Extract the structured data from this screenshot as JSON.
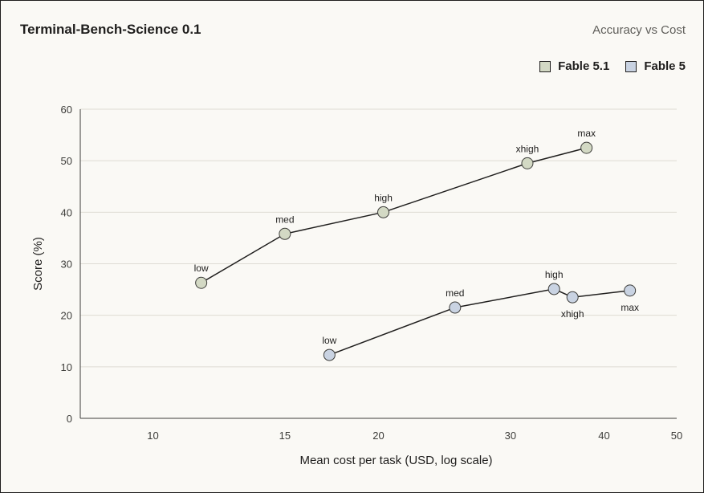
{
  "header": {
    "title": "Terminal-Bench-Science 0.1",
    "subtitle": "Accuracy vs Cost"
  },
  "chart_data": {
    "type": "line",
    "title": "Terminal-Bench-Science 0.1",
    "subtitle": "Accuracy vs Cost",
    "xlabel": "Mean cost per task (USD, log scale)",
    "ylabel": "Score (%)",
    "xscale": "log",
    "xlim": [
      8,
      50
    ],
    "ylim": [
      0,
      60
    ],
    "xticks": [
      10,
      15,
      20,
      30,
      40,
      50
    ],
    "yticks": [
      0,
      10,
      20,
      30,
      40,
      50,
      60
    ],
    "grid": "horizontal",
    "legend_position": "top-right",
    "series": [
      {
        "name": "Fable 5.1",
        "color": "#d3d9c4",
        "points": [
          {
            "label": "low",
            "x": 11.6,
            "y": 26.3,
            "label_pos": "above"
          },
          {
            "label": "med",
            "x": 15.0,
            "y": 35.8,
            "label_pos": "above"
          },
          {
            "label": "high",
            "x": 20.3,
            "y": 40.0,
            "label_pos": "above"
          },
          {
            "label": "xhigh",
            "x": 31.6,
            "y": 49.5,
            "label_pos": "above"
          },
          {
            "label": "max",
            "x": 37.9,
            "y": 52.5,
            "label_pos": "above"
          }
        ]
      },
      {
        "name": "Fable 5",
        "color": "#c9d3e2",
        "points": [
          {
            "label": "low",
            "x": 17.2,
            "y": 12.3,
            "label_pos": "above"
          },
          {
            "label": "med",
            "x": 25.3,
            "y": 21.5,
            "label_pos": "above"
          },
          {
            "label": "high",
            "x": 34.3,
            "y": 25.1,
            "label_pos": "above"
          },
          {
            "label": "xhigh",
            "x": 36.3,
            "y": 23.5,
            "label_pos": "below"
          },
          {
            "label": "max",
            "x": 43.3,
            "y": 24.8,
            "label_pos": "below"
          }
        ]
      }
    ]
  }
}
